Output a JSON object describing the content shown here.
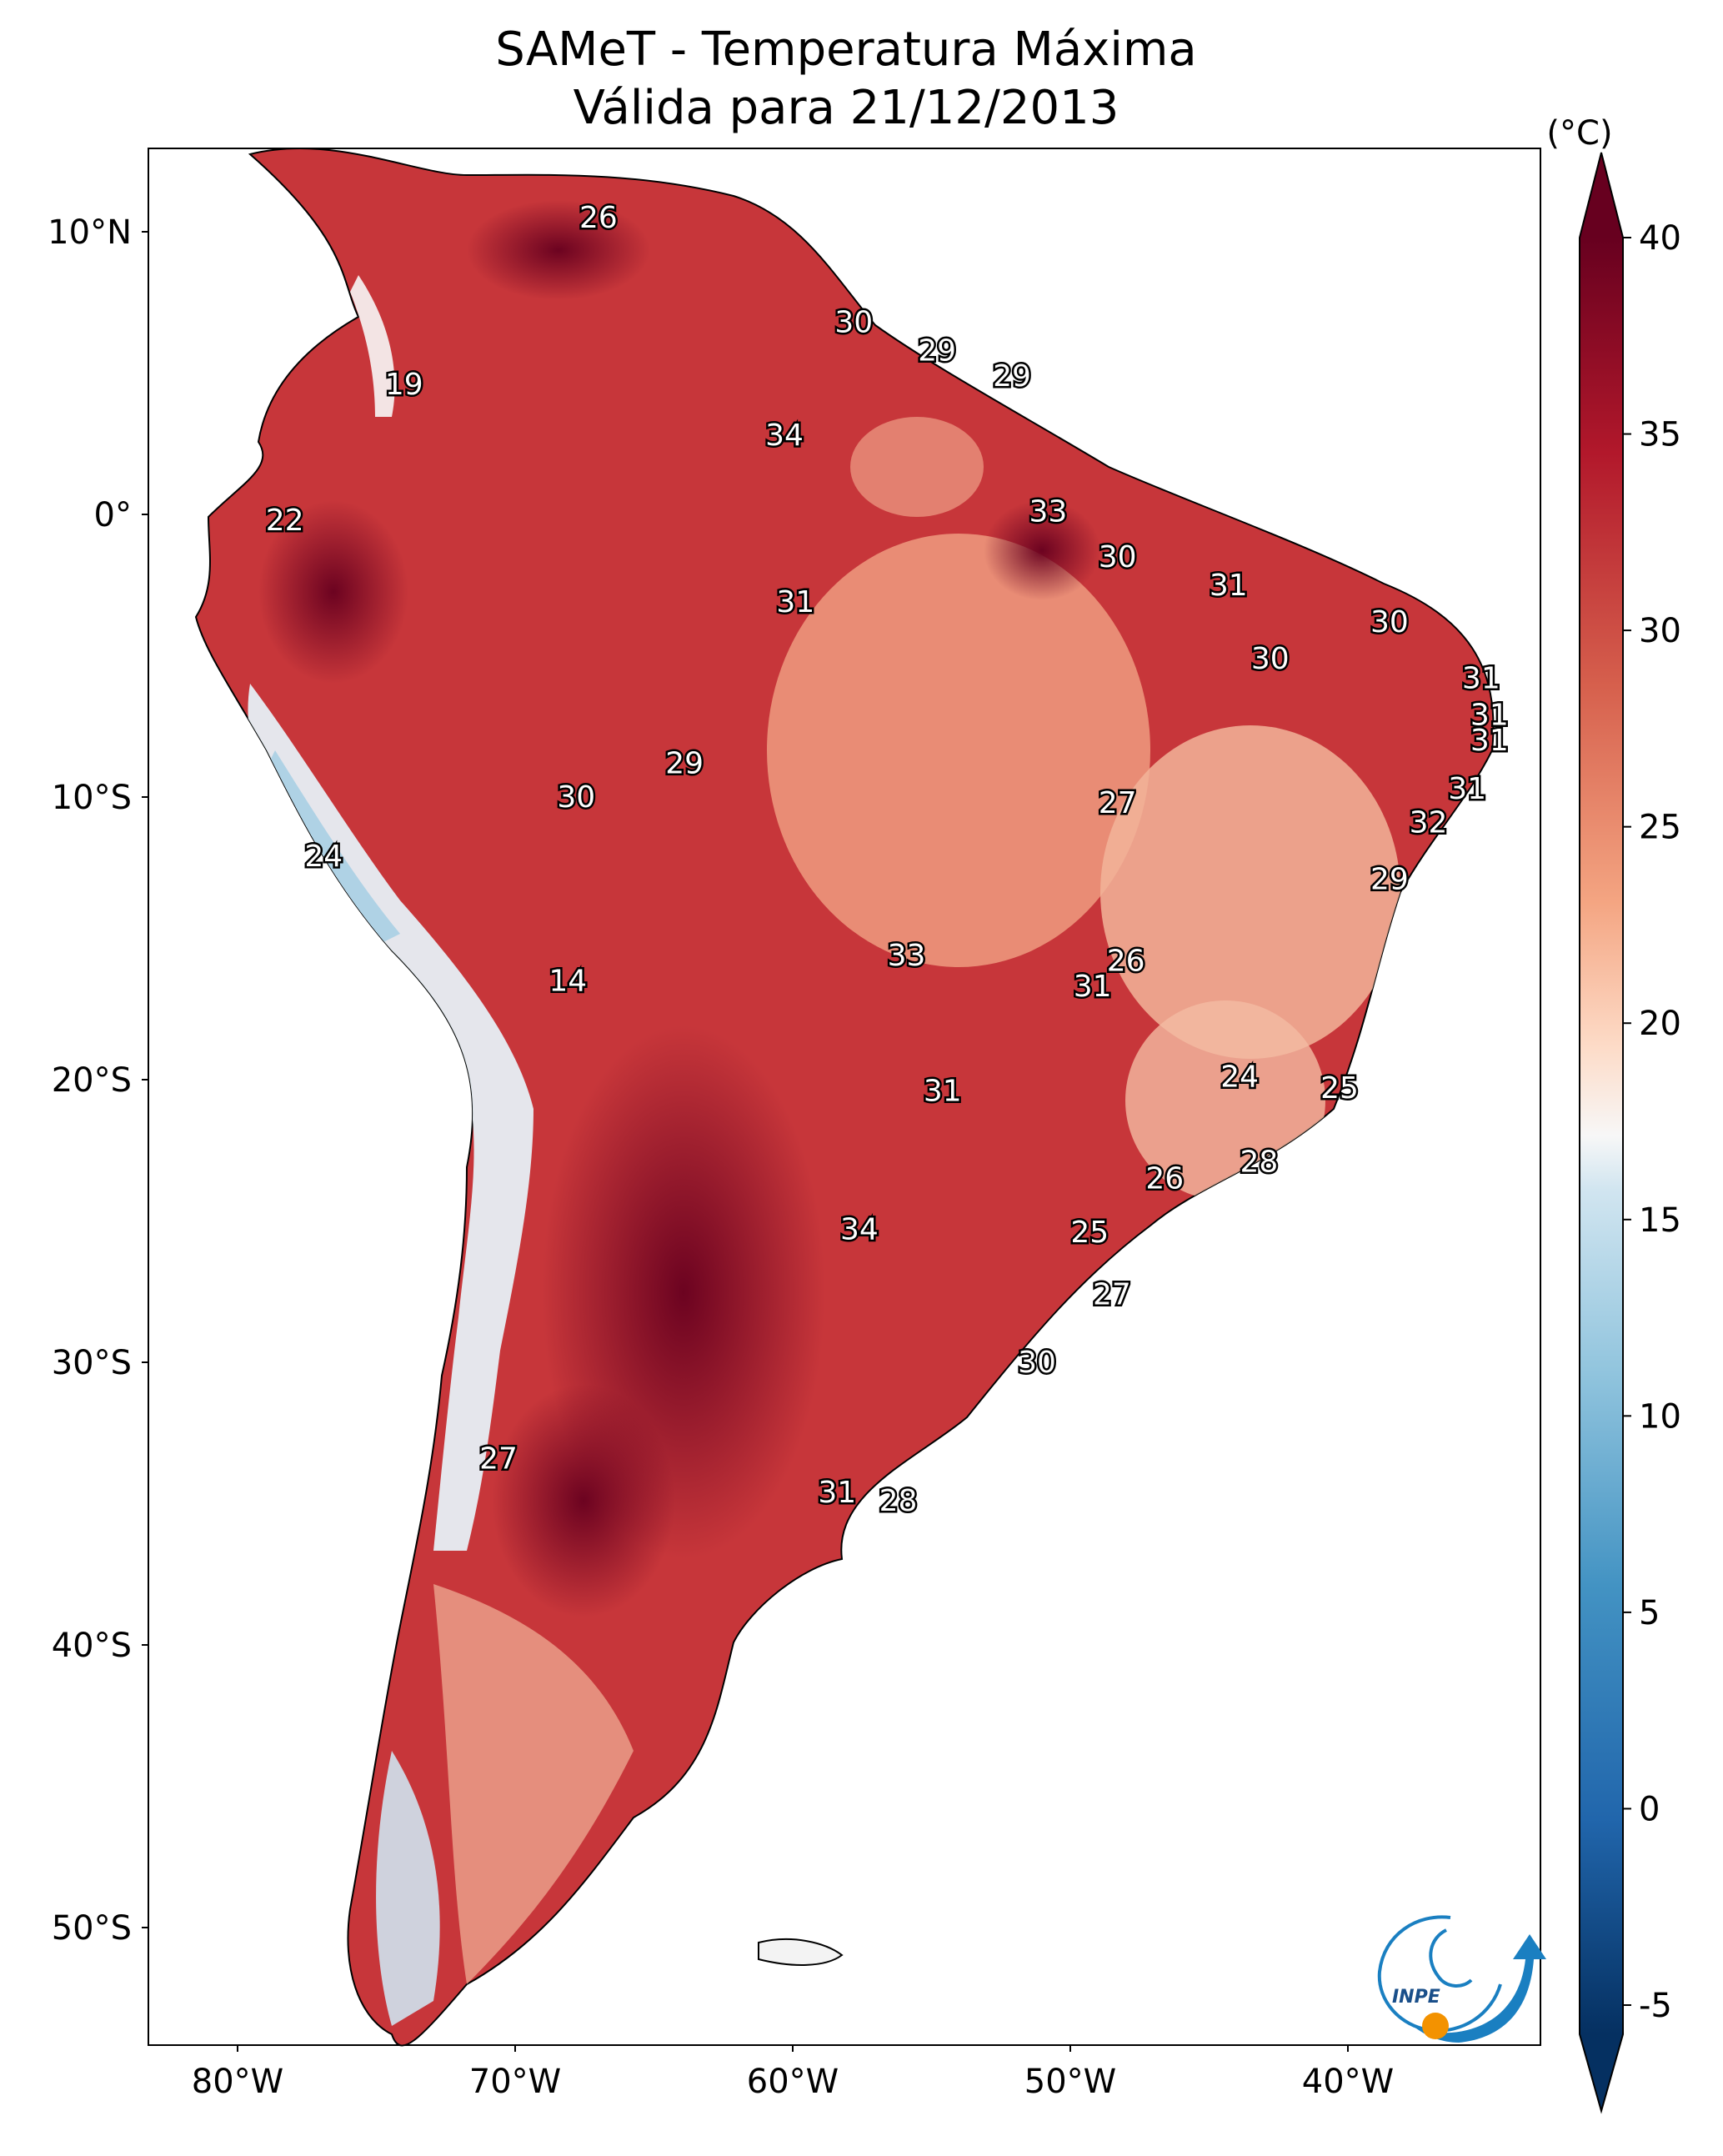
{
  "title": {
    "line1": "SAMeT - Temperatura Máxima",
    "line2": "Válida para 21/12/2013"
  },
  "map": {
    "lat_labels": [
      "10°N",
      "0°",
      "10°S",
      "20°S",
      "30°S",
      "40°S",
      "50°S"
    ],
    "lon_labels": [
      "80°W",
      "70°W",
      "60°W",
      "50°W",
      "40°W"
    ],
    "point_values": [
      {
        "label": "26",
        "lon": -67.0,
        "lat": 10.5
      },
      {
        "label": "19",
        "lon": -74.0,
        "lat": 4.6
      },
      {
        "label": "30",
        "lon": -57.8,
        "lat": 6.8
      },
      {
        "label": "29",
        "lon": -54.8,
        "lat": 5.8
      },
      {
        "label": "29",
        "lon": -52.1,
        "lat": 4.9
      },
      {
        "label": "34",
        "lon": -60.3,
        "lat": 2.8
      },
      {
        "label": "33",
        "lon": -50.8,
        "lat": 0.1
      },
      {
        "label": "22",
        "lon": -78.3,
        "lat": -0.2
      },
      {
        "label": "30",
        "lon": -48.3,
        "lat": -1.5
      },
      {
        "label": "31",
        "lon": -44.3,
        "lat": -2.5
      },
      {
        "label": "31",
        "lon": -59.9,
        "lat": -3.1
      },
      {
        "label": "30",
        "lon": -38.5,
        "lat": -3.8
      },
      {
        "label": "30",
        "lon": -42.8,
        "lat": -5.1
      },
      {
        "label": "31",
        "lon": -35.2,
        "lat": -5.8
      },
      {
        "label": "31",
        "lon": -34.9,
        "lat": -7.1
      },
      {
        "label": "31",
        "lon": -34.9,
        "lat": -8.0
      },
      {
        "label": "29",
        "lon": -63.9,
        "lat": -8.8
      },
      {
        "label": "31",
        "lon": -35.7,
        "lat": -9.7
      },
      {
        "label": "30",
        "lon": -67.8,
        "lat": -10.0
      },
      {
        "label": "27",
        "lon": -48.3,
        "lat": -10.2
      },
      {
        "label": "32",
        "lon": -37.1,
        "lat": -10.9
      },
      {
        "label": "24",
        "lon": -76.9,
        "lat": -12.1
      },
      {
        "label": "29",
        "lon": -38.5,
        "lat": -12.9
      },
      {
        "label": "33",
        "lon": -55.9,
        "lat": -15.6
      },
      {
        "label": "26",
        "lon": -48.0,
        "lat": -15.8
      },
      {
        "label": "14",
        "lon": -68.1,
        "lat": -16.5
      },
      {
        "label": "31",
        "lon": -49.2,
        "lat": -16.7
      },
      {
        "label": "24",
        "lon": -43.9,
        "lat": -19.9
      },
      {
        "label": "25",
        "lon": -40.3,
        "lat": -20.3
      },
      {
        "label": "31",
        "lon": -54.6,
        "lat": -20.4
      },
      {
        "label": "28",
        "lon": -43.2,
        "lat": -22.9
      },
      {
        "label": "26",
        "lon": -46.6,
        "lat": -23.5
      },
      {
        "label": "34",
        "lon": -57.6,
        "lat": -25.3
      },
      {
        "label": "25",
        "lon": -49.3,
        "lat": -25.4
      },
      {
        "label": "27",
        "lon": -48.5,
        "lat": -27.6
      },
      {
        "label": "30",
        "lon": -51.2,
        "lat": -30.0
      },
      {
        "label": "27",
        "lon": -70.6,
        "lat": -33.4
      },
      {
        "label": "31",
        "lon": -58.4,
        "lat": -34.6
      },
      {
        "label": "28",
        "lon": -56.2,
        "lat": -34.9
      }
    ]
  },
  "colorbar": {
    "unit": "(°C)",
    "ticks": [
      "-5",
      "0",
      "5",
      "10",
      "15",
      "20",
      "25",
      "30",
      "35",
      "40"
    ],
    "range": [
      -5,
      40
    ],
    "colormap": "RdBu_r",
    "extend": "both"
  },
  "logo": {
    "text": "INPE"
  },
  "colors": {
    "hot_dark": "#67001f",
    "hot": "#b2182b",
    "warm": "#d6604d",
    "mild": "#f4a582",
    "neutral": "#f7f7f7",
    "cool": "#92c5de",
    "cold": "#2166ac",
    "cold_dark": "#053061",
    "logo_blue": "#1a7fc1",
    "logo_orange": "#f39200"
  }
}
